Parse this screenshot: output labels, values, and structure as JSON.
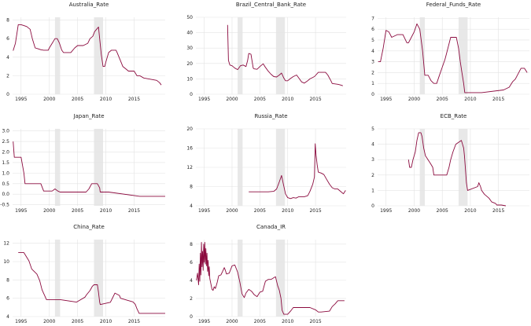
{
  "colors": {
    "line": "#8b0a3e",
    "recession": "#d9d9d9",
    "grid": "#e3e3e3"
  },
  "chart_data": [
    {
      "type": "line",
      "title": "Australia_Rate",
      "xlim": [
        1993.5,
        2020.5
      ],
      "ylim": [
        0,
        8.3
      ],
      "yticks": [
        0,
        2,
        4,
        6,
        8
      ],
      "xticks": [
        1995,
        2000,
        2005,
        2010,
        2015
      ],
      "recessions": [
        [
          2001.0,
          2001.9
        ],
        [
          2007.9,
          2009.5
        ]
      ],
      "x": [
        1993.6,
        1994.0,
        1994.5,
        1995.0,
        1995.5,
        1996.0,
        1996.6,
        1997.0,
        1997.5,
        1998.0,
        1998.5,
        1999.0,
        1999.8,
        2000.0,
        2000.5,
        2001.0,
        2001.4,
        2001.8,
        2002.2,
        2002.5,
        2003.8,
        2004.5,
        2005.0,
        2006.0,
        2006.8,
        2007.2,
        2007.7,
        2008.0,
        2008.7,
        2008.9,
        2009.2,
        2009.5,
        2009.8,
        2010.0,
        2010.5,
        2011.0,
        2011.8,
        2012.0,
        2012.5,
        2013.0,
        2013.5,
        2014.0,
        2015.0,
        2015.5,
        2016.0,
        2016.7,
        2019.0,
        2019.5,
        2019.8
      ],
      "y": [
        4.7,
        5.5,
        7.5,
        7.5,
        7.4,
        7.3,
        7.0,
        6.0,
        5.0,
        4.9,
        4.8,
        4.75,
        4.75,
        5.0,
        5.5,
        6.0,
        6.0,
        5.5,
        4.75,
        4.5,
        4.5,
        5.0,
        5.25,
        5.25,
        5.5,
        6.0,
        6.25,
        6.75,
        7.25,
        6.0,
        4.25,
        3.0,
        3.0,
        3.5,
        4.5,
        4.75,
        4.75,
        4.5,
        3.75,
        3.0,
        2.75,
        2.5,
        2.5,
        2.0,
        2.0,
        1.75,
        1.5,
        1.25,
        1.0
      ]
    },
    {
      "type": "line",
      "title": "Brazil_Central_Bank_Rate",
      "xlim": [
        1993.5,
        2020.5
      ],
      "ylim": [
        0,
        50
      ],
      "yticks": [
        0,
        10,
        20,
        30,
        40,
        50
      ],
      "xticks": [
        1995,
        2000,
        2005,
        2010,
        2015
      ],
      "recessions": [
        [
          2001.0,
          2001.9
        ],
        [
          2007.9,
          2009.5
        ]
      ],
      "x": [
        1999.2,
        1999.35,
        1999.6,
        2000.0,
        2000.5,
        2001.0,
        2001.5,
        2002.0,
        2002.5,
        2002.8,
        2003.0,
        2003.4,
        2003.8,
        2004.0,
        2004.5,
        2005.0,
        2005.6,
        2006.0,
        2006.5,
        2007.0,
        2007.5,
        2008.0,
        2008.5,
        2008.9,
        2009.3,
        2009.6,
        2010.0,
        2010.5,
        2011.0,
        2011.6,
        2012.0,
        2012.5,
        2013.0,
        2013.5,
        2014.0,
        2014.8,
        2015.0,
        2015.5,
        2016.0,
        2016.8,
        2017.2,
        2017.8,
        2018.0,
        2019.0,
        2019.5,
        2019.9
      ],
      "y": [
        45,
        22,
        19,
        18.5,
        17,
        16,
        18.5,
        19,
        18,
        22,
        26.5,
        26,
        17,
        16.5,
        16.2,
        18,
        19.8,
        17.5,
        15,
        13,
        11.5,
        11.25,
        12.5,
        13.75,
        10.5,
        8.75,
        8.75,
        10.25,
        11.5,
        12.5,
        10.5,
        8,
        7.25,
        8.5,
        10,
        11.5,
        12.25,
        14.25,
        14.25,
        14.25,
        12.5,
        8.5,
        7,
        6.5,
        6,
        5.5
      ]
    },
    {
      "type": "line",
      "title": "Federal_Funds_Rate",
      "xlim": [
        1993.5,
        2020.5
      ],
      "ylim": [
        0,
        7.1
      ],
      "yticks": [
        0,
        1,
        2,
        3,
        4,
        5,
        6,
        7
      ],
      "xticks": [
        1995,
        2000,
        2005,
        2010,
        2015
      ],
      "recessions": [
        [
          2001.0,
          2001.9
        ],
        [
          2007.9,
          2009.5
        ]
      ],
      "x": [
        1993.6,
        1994.0,
        1994.5,
        1995.0,
        1995.5,
        1996.0,
        1997.0,
        1997.5,
        1998.0,
        1998.7,
        1999.0,
        1999.5,
        2000.0,
        2000.5,
        2001.0,
        2001.5,
        2001.9,
        2002.5,
        2003.0,
        2003.5,
        2004.0,
        2004.5,
        2005.0,
        2005.5,
        2006.0,
        2006.5,
        2007.0,
        2007.5,
        2007.9,
        2008.2,
        2008.5,
        2008.8,
        2009.0,
        2012.0,
        2015.9,
        2016.9,
        2017.5,
        2018.0,
        2018.5,
        2019.0,
        2019.6,
        2020.1
      ],
      "y": [
        3.0,
        3.0,
        4.25,
        5.9,
        5.75,
        5.25,
        5.5,
        5.5,
        5.5,
        4.75,
        4.75,
        5.25,
        5.75,
        6.5,
        6.0,
        4.0,
        1.75,
        1.75,
        1.25,
        1.0,
        1.0,
        1.75,
        2.5,
        3.25,
        4.25,
        5.25,
        5.25,
        5.25,
        4.25,
        3.0,
        2.0,
        1.0,
        0.15,
        0.15,
        0.4,
        0.65,
        1.15,
        1.4,
        1.9,
        2.4,
        2.4,
        2.0
      ]
    },
    {
      "type": "line",
      "title": "Japan_Rate",
      "xlim": [
        1993.5,
        2020.5
      ],
      "ylim": [
        -0.55,
        3.1
      ],
      "yticks": [
        -0.5,
        0.0,
        0.5,
        1.0,
        1.5,
        2.0,
        2.5,
        3.0
      ],
      "yticklabels": [
        "-0.5",
        "0.0",
        "0.5",
        "1.0",
        "1.5",
        "2.0",
        "2.5",
        "3.0"
      ],
      "xticks": [
        1995,
        2000,
        2005,
        2010,
        2015
      ],
      "recessions": [
        [
          2001.0,
          2001.9
        ],
        [
          2007.9,
          2009.5
        ]
      ],
      "x": [
        1993.6,
        1993.8,
        1995.0,
        1995.5,
        1995.7,
        1998.5,
        1999.0,
        2000.5,
        2001.0,
        2001.5,
        2001.9,
        2006.5,
        2007.0,
        2007.5,
        2008.5,
        2008.9,
        2009.0,
        2010.5,
        2016.0,
        2020.5
      ],
      "y": [
        2.5,
        1.75,
        1.75,
        1.0,
        0.5,
        0.5,
        0.15,
        0.15,
        0.25,
        0.15,
        0.1,
        0.1,
        0.25,
        0.5,
        0.5,
        0.3,
        0.1,
        0.1,
        -0.1,
        -0.1
      ]
    },
    {
      "type": "line",
      "title": "Russia_Rate",
      "xlim": [
        1993.5,
        2020.5
      ],
      "ylim": [
        4,
        20
      ],
      "yticks": [
        4,
        8,
        12,
        16,
        20
      ],
      "xticks": [
        1995,
        2000,
        2005,
        2010,
        2015
      ],
      "recessions": [
        [
          2001.0,
          2001.9
        ],
        [
          2007.9,
          2009.5
        ]
      ],
      "x": [
        2003.0,
        2005.0,
        2006.5,
        2007.5,
        2008.0,
        2008.5,
        2008.9,
        2009.2,
        2009.6,
        2010.0,
        2010.5,
        2011.0,
        2011.5,
        2012.0,
        2013.0,
        2013.6,
        2014.0,
        2014.5,
        2014.8,
        2014.95,
        2015.1,
        2015.3,
        2015.5,
        2016.0,
        2016.5,
        2017.0,
        2017.5,
        2018.0,
        2018.5,
        2019.0,
        2019.5,
        2020.0,
        2020.4
      ],
      "y": [
        6.9,
        6.9,
        6.9,
        7.0,
        7.5,
        9.0,
        10.3,
        8.6,
        6.5,
        5.7,
        5.5,
        5.7,
        5.6,
        5.9,
        5.9,
        6.1,
        7.0,
        8.5,
        10.0,
        16.9,
        14.5,
        12.5,
        11.0,
        10.8,
        10.5,
        9.5,
        8.5,
        7.75,
        7.5,
        7.5,
        7.0,
        6.5,
        7.2
      ]
    },
    {
      "type": "line",
      "title": "ECB_Rate",
      "xlim": [
        1993.5,
        2020.5
      ],
      "ylim": [
        0,
        5
      ],
      "yticks": [
        0,
        1,
        2,
        3,
        4,
        5
      ],
      "xticks": [
        1995,
        2000,
        2005,
        2010,
        2015
      ],
      "recessions": [
        [
          2001.0,
          2001.9
        ],
        [
          2007.9,
          2009.5
        ]
      ],
      "x": [
        1999.0,
        1999.2,
        1999.5,
        1999.8,
        2000.2,
        2000.5,
        2000.8,
        2001.2,
        2001.4,
        2001.7,
        2002.0,
        2002.9,
        2003.3,
        2003.5,
        2005.8,
        2006.2,
        2006.5,
        2006.9,
        2007.4,
        2008.4,
        2008.8,
        2008.95,
        2009.1,
        2009.3,
        2009.5,
        2011.3,
        2011.5,
        2011.8,
        2012.0,
        2012.5,
        2013.3,
        2013.8,
        2014.5,
        2014.7,
        2015.5,
        2016.3
      ],
      "y": [
        3.0,
        2.5,
        2.5,
        3.0,
        3.5,
        4.25,
        4.75,
        4.75,
        4.5,
        3.75,
        3.25,
        2.75,
        2.5,
        2.0,
        2.0,
        2.5,
        3.0,
        3.5,
        4.0,
        4.25,
        3.75,
        3.25,
        2.5,
        1.5,
        1.0,
        1.25,
        1.5,
        1.25,
        1.0,
        0.75,
        0.5,
        0.25,
        0.15,
        0.05,
        0.05,
        0.0
      ]
    },
    {
      "type": "line",
      "title": "China_Rate",
      "xlim": [
        1993.5,
        2020.5
      ],
      "ylim": [
        4,
        12.4
      ],
      "yticks": [
        4,
        6,
        8,
        10,
        12
      ],
      "xticks": [
        1995,
        2000,
        2005,
        2010,
        2015
      ],
      "recessions": [
        [
          2001.0,
          2001.9
        ],
        [
          2007.9,
          2009.5
        ]
      ],
      "x": [
        1994.5,
        1995.5,
        1996.4,
        1996.9,
        1997.8,
        1998.3,
        1998.7,
        1999.5,
        2001.9,
        2004.8,
        2006.3,
        2006.6,
        2007.2,
        2007.6,
        2007.9,
        2008.5,
        2008.7,
        2008.9,
        2009.0,
        2010.8,
        2011.2,
        2011.6,
        2012.4,
        2012.6,
        2014.8,
        2015.2,
        2015.5,
        2015.9,
        2019.5,
        2020.5
      ],
      "y": [
        10.98,
        10.98,
        10.08,
        9.18,
        8.64,
        7.92,
        6.93,
        5.85,
        5.85,
        5.58,
        6.12,
        6.39,
        6.84,
        7.29,
        7.47,
        7.47,
        6.66,
        5.58,
        5.31,
        5.56,
        6.06,
        6.56,
        6.31,
        6.0,
        5.6,
        5.35,
        4.85,
        4.35,
        4.35,
        4.35
      ]
    },
    {
      "type": "line",
      "title": "Canada_IR",
      "xlim": [
        1993.5,
        2020.5
      ],
      "ylim": [
        0,
        8.5
      ],
      "yticks": [
        0,
        2,
        4,
        6,
        8
      ],
      "xticks": [
        1995,
        2000,
        2005,
        2010,
        2015
      ],
      "recessions": [
        [
          2001.0,
          2001.9
        ],
        [
          2007.9,
          2009.5
        ]
      ],
      "x": [
        1993.6,
        1993.8,
        1994.0,
        1994.1,
        1994.2,
        1994.3,
        1994.4,
        1994.5,
        1994.6,
        1994.7,
        1994.8,
        1994.9,
        1995.0,
        1995.1,
        1995.2,
        1995.3,
        1995.4,
        1995.5,
        1995.6,
        1995.7,
        1995.8,
        1995.9,
        1996.0,
        1996.2,
        1996.4,
        1996.6,
        1996.8,
        1997.0,
        1997.3,
        1997.6,
        1998.0,
        1998.3,
        1998.6,
        1998.8,
        1999.0,
        1999.5,
        2000.0,
        2000.5,
        2001.0,
        2001.4,
        2001.8,
        2002.2,
        2002.5,
        2003.0,
        2003.5,
        2004.0,
        2004.5,
        2005.0,
        2005.5,
        2006.0,
        2006.5,
        2007.0,
        2007.8,
        2008.2,
        2008.5,
        2008.8,
        2009.0,
        2009.3,
        2010.0,
        2010.5,
        2011.0,
        2012.0,
        2014.0,
        2015.0,
        2015.5,
        2016.0,
        2017.5,
        2018.0,
        2018.5,
        2019.0,
        2020.2
      ],
      "y": [
        4.0,
        4.8,
        3.5,
        5.8,
        3.9,
        7.0,
        4.6,
        8.2,
        5.5,
        7.2,
        5.1,
        8.0,
        6.0,
        8.2,
        5.8,
        7.5,
        5.6,
        7.0,
        5.0,
        6.2,
        4.5,
        5.5,
        4.2,
        3.6,
        3.0,
        2.9,
        3.3,
        3.1,
        3.7,
        4.5,
        4.6,
        5.0,
        5.4,
        5.1,
        4.7,
        4.8,
        5.6,
        5.7,
        4.9,
        3.8,
        2.5,
        2.1,
        2.6,
        3.0,
        2.8,
        2.4,
        2.2,
        2.7,
        2.8,
        3.9,
        4.1,
        4.1,
        4.4,
        3.4,
        2.9,
        2.0,
        0.7,
        0.25,
        0.25,
        0.6,
        1.0,
        1.0,
        1.0,
        0.75,
        0.5,
        0.5,
        0.6,
        1.1,
        1.4,
        1.75,
        1.75
      ]
    }
  ]
}
